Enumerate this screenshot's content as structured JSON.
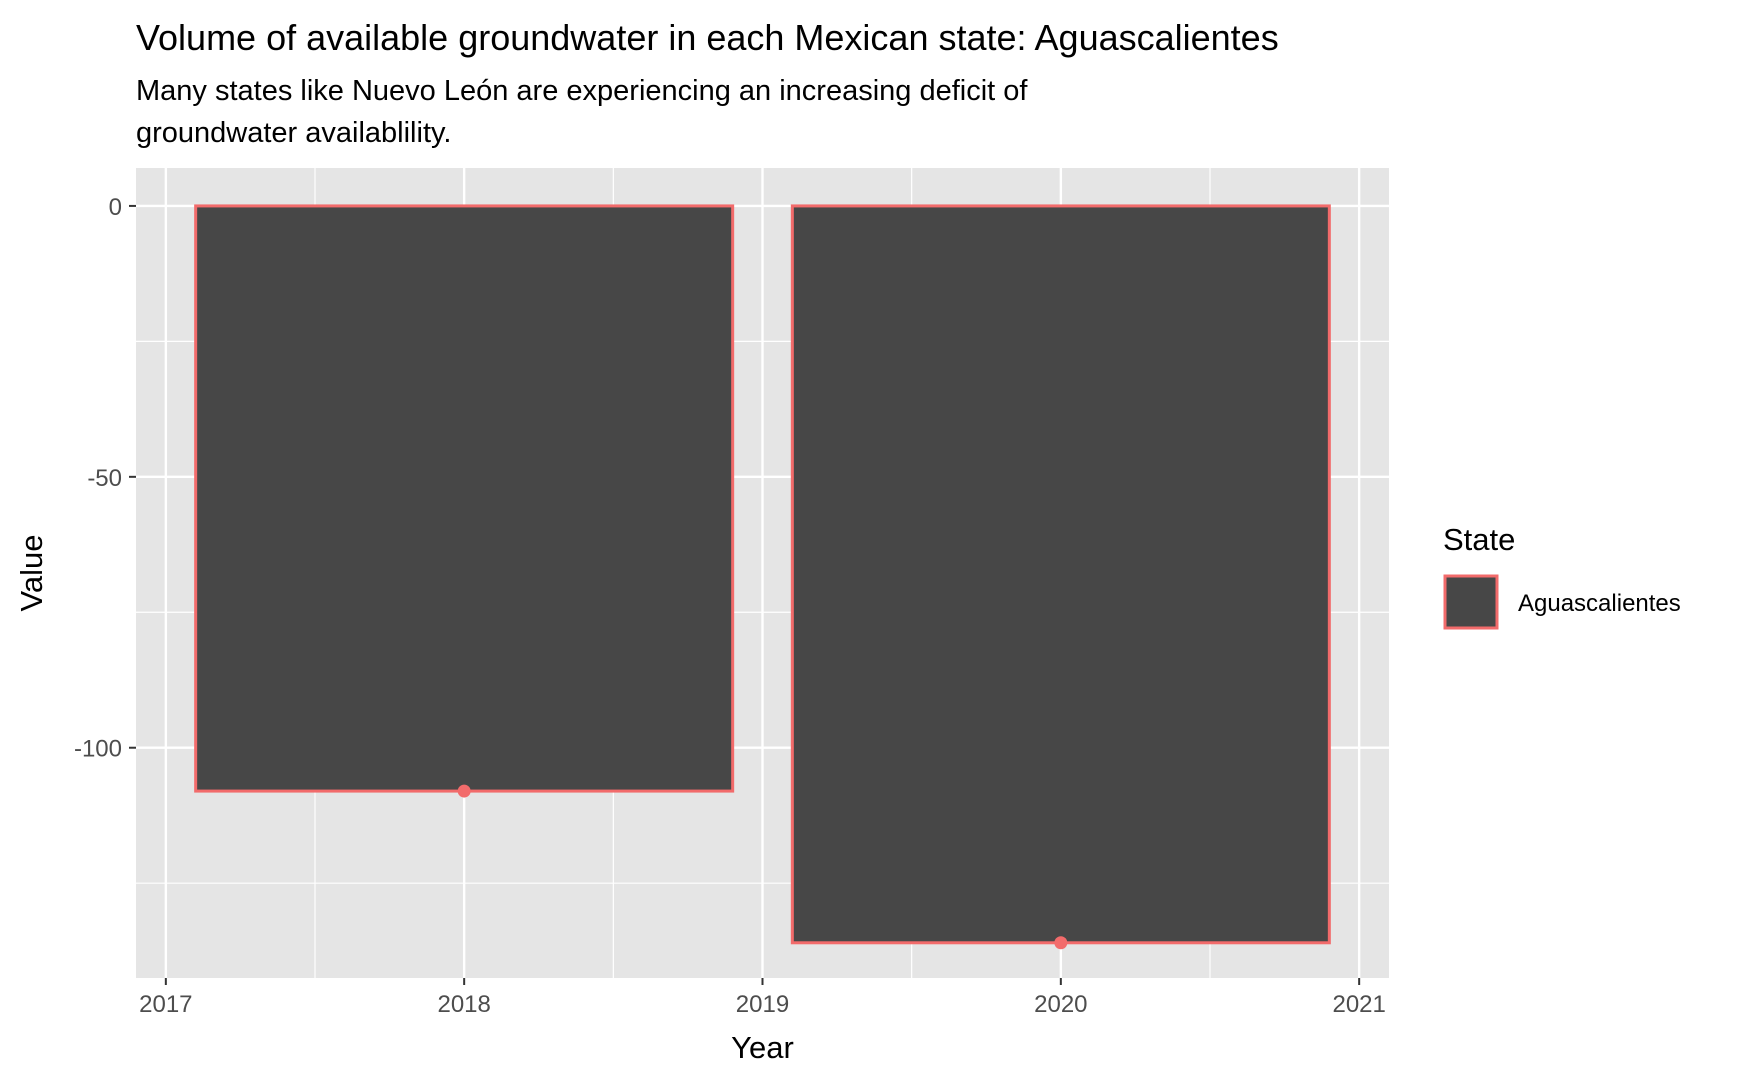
{
  "chart_data": {
    "type": "bar",
    "title": "Volume of available groundwater in each Mexican state: Aguascalientes",
    "subtitle_lines": [
      "Many states like Nuevo León are experiencing an increasing deficit of",
      "groundwater availablility."
    ],
    "xlabel": "Year",
    "ylabel": "Value",
    "x": [
      2018,
      2020
    ],
    "series": [
      {
        "name": "Aguascalientes",
        "values": [
          -108,
          -136
        ]
      }
    ],
    "xlim": [
      2016.9,
      2021.1
    ],
    "ylim": [
      -142.5,
      7
    ],
    "x_ticks": [
      2017,
      2018,
      2019,
      2020,
      2021
    ],
    "y_ticks": [
      0,
      -50,
      -100
    ],
    "y_tick_labels": [
      "0",
      "-50",
      "-100"
    ],
    "y_minor_ticks": [
      -25,
      -75,
      -125
    ],
    "x_minor_ticks": [
      2017.5,
      2018.5,
      2019.5,
      2020.5
    ],
    "bar_width_years": 1.8,
    "grid": true,
    "legend": {
      "title": "State",
      "position": "right",
      "entries": [
        "Aguascalientes"
      ]
    },
    "colors": {
      "panel_background": "#e5e5e5",
      "grid": "#ffffff",
      "bar_fill": "#474747",
      "bar_outline": "#f26b6b",
      "point": "#f26b6b"
    }
  }
}
